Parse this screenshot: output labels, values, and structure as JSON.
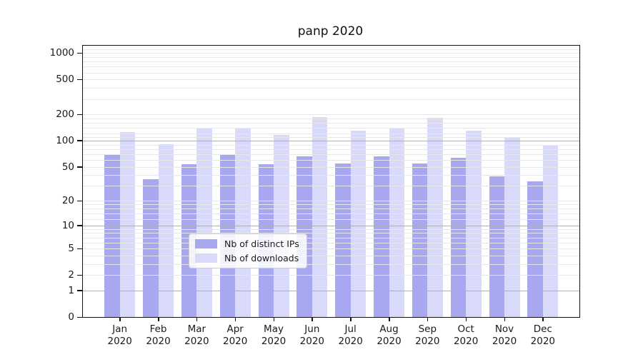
{
  "title": "panp 2020",
  "colors": {
    "series_ips": "#a8a8f1",
    "series_downloads": "#d9d9fa",
    "grid_major_dark": "#b0b0b0",
    "grid_minor": "#e7e7e7",
    "axis": "#111111",
    "legend_border": "#cccccc"
  },
  "legend": {
    "items": [
      {
        "label": "Nb of distinct IPs",
        "color": "#a8a8f1"
      },
      {
        "label": "Nb of downloads",
        "color": "#d9d9fa"
      }
    ]
  },
  "chart_data": {
    "type": "bar",
    "title": "panp 2020",
    "xlabel": "",
    "ylabel": "",
    "yscale": "log1p",
    "ylim": [
      0,
      1220
    ],
    "grid": true,
    "legend_position": "lower center",
    "y_ticks": [
      1000,
      500,
      200,
      100,
      50,
      20,
      10,
      5,
      2,
      1,
      0
    ],
    "categories": [
      "Jan\n2020",
      "Feb\n2020",
      "Mar\n2020",
      "Apr\n2020",
      "May\n2020",
      "Jun\n2020",
      "Jul\n2020",
      "Aug\n2020",
      "Sep\n2020",
      "Oct\n2020",
      "Nov\n2020",
      "Dec\n2020"
    ],
    "series": [
      {
        "name": "Nb of distinct IPs",
        "color": "#a8a8f1",
        "values": [
          68,
          36,
          53,
          69,
          54,
          66,
          55,
          66,
          55,
          63,
          39,
          34
        ]
      },
      {
        "name": "Nb of downloads",
        "color": "#d9d9fa",
        "values": [
          125,
          91,
          138,
          140,
          117,
          186,
          130,
          140,
          181,
          131,
          108,
          88
        ]
      }
    ]
  }
}
